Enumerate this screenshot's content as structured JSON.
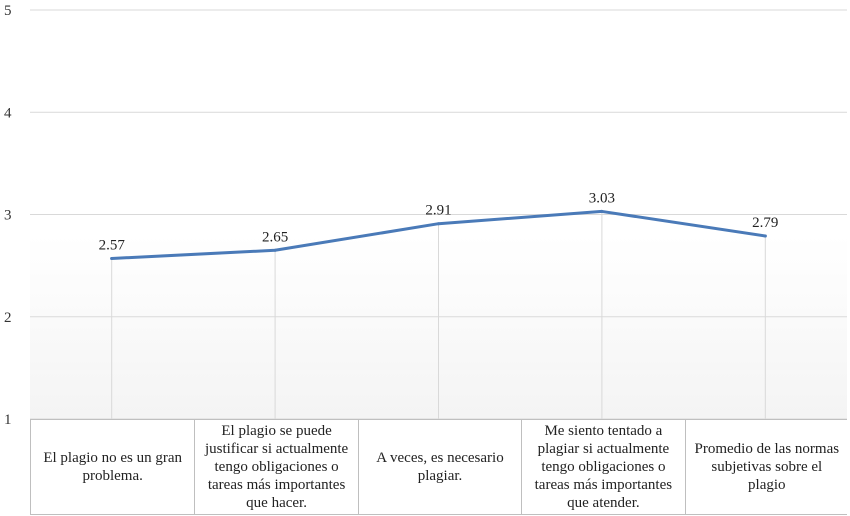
{
  "chart_data": {
    "type": "line",
    "categories": [
      "El plagio no es un gran problema.",
      "El plagio se puede justificar si actualmente tengo obligaciones o tareas más importantes que hacer.",
      "A veces, es necesario plagiar.",
      "Me siento tentado a plagiar si actualmente tengo obligaciones o tareas más importantes que atender.",
      "Promedio de las normas subjetivas sobre el plagio"
    ],
    "values": [
      2.57,
      2.65,
      2.91,
      3.03,
      2.79
    ],
    "data_labels": [
      "2.57",
      "2.65",
      "2.91",
      "3.03",
      "2.79"
    ],
    "y_ticks": [
      "1",
      "2",
      "3",
      "4",
      "5"
    ],
    "ylim": [
      1,
      5
    ],
    "title": "",
    "xlabel": "",
    "ylabel": "",
    "grid": true,
    "legend": "none",
    "line_color": "#4a7ab8",
    "grid_color": "#d9d9d9"
  }
}
